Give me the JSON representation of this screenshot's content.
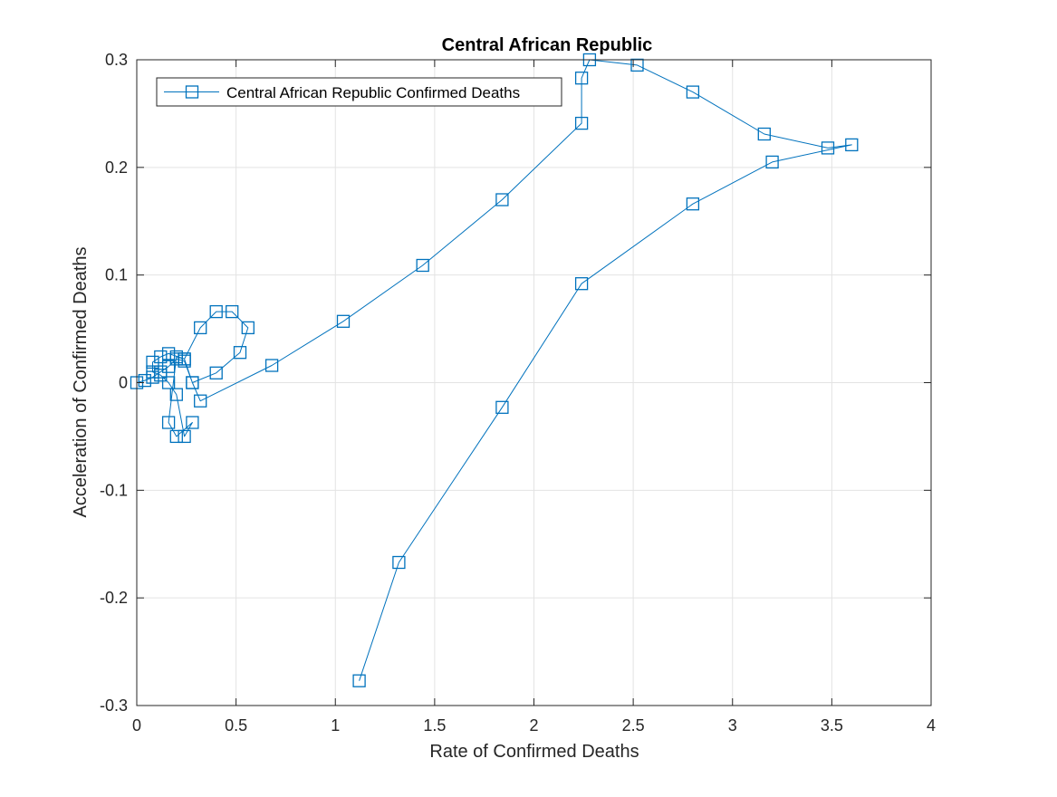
{
  "chart_data": {
    "type": "line",
    "title": "Central African Republic",
    "xlabel": "Rate of Confirmed Deaths",
    "ylabel": "Acceleration of Confirmed Deaths",
    "xlim": [
      0,
      4
    ],
    "ylim": [
      -0.3,
      0.3
    ],
    "x_ticks": [
      0,
      0.5,
      1,
      1.5,
      2,
      2.5,
      3,
      3.5,
      4
    ],
    "x_tick_labels": [
      "0",
      "0.5",
      "1",
      "1.5",
      "2",
      "2.5",
      "3",
      "3.5",
      "4"
    ],
    "y_ticks": [
      -0.3,
      -0.2,
      -0.1,
      0,
      0.1,
      0.2,
      0.3
    ],
    "y_tick_labels": [
      "-0.3",
      "-0.2",
      "-0.1",
      "0",
      "0.1",
      "0.2",
      "0.3"
    ],
    "grid": true,
    "legend_position": "top-left",
    "marker": "square",
    "series_color": "#0072BD",
    "series": [
      {
        "name": "Central African Republic Confirmed Deaths",
        "x": [
          0,
          0.04,
          0.08,
          0.12,
          0.16,
          0.2,
          0.24,
          0.28,
          0.4,
          0.52,
          0.56,
          0.48,
          0.4,
          0.32,
          0.24,
          0.16,
          0.12,
          0.08,
          0.08,
          0.12,
          0.16,
          0.2,
          0.24,
          0.28,
          0.2,
          0.16,
          0.2,
          0.24,
          0.28,
          0.32,
          0.68,
          1.04,
          1.44,
          1.84,
          2.24,
          2.24,
          2.28,
          2.52,
          2.8,
          3.16,
          3.48,
          3.6,
          3.2,
          2.8,
          2.24,
          1.84,
          1.32,
          1.12
        ],
        "y": [
          0,
          0.002,
          0.005,
          0.01,
          0.015,
          0.022,
          0.02,
          0,
          0.009,
          0.028,
          0.051,
          0.066,
          0.066,
          0.051,
          0.022,
          0.027,
          0.024,
          0.019,
          0.01,
          0.007,
          0,
          -0.011,
          -0.05,
          -0.037,
          -0.05,
          -0.037,
          0.024,
          0.022,
          0,
          -0.017,
          0.016,
          0.057,
          0.109,
          0.17,
          0.241,
          0.283,
          0.3,
          0.295,
          0.27,
          0.231,
          0.218,
          0.221,
          0.205,
          0.166,
          0.092,
          -0.023,
          -0.167,
          -0.277
        ]
      }
    ]
  }
}
